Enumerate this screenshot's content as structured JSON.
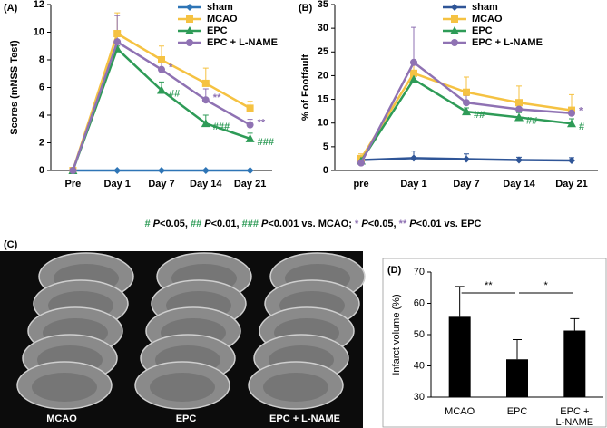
{
  "chart_data": [
    {
      "type": "line",
      "panel": "(A)",
      "y_label": "Scores (mNSS Test)",
      "categories": [
        "Pre",
        "Day 1",
        "Day 7",
        "Day 14",
        "Day 21"
      ],
      "ylim": [
        0,
        12
      ],
      "yticks": [
        0,
        2,
        4,
        6,
        8,
        10,
        12
      ],
      "series": [
        {
          "name": "sham",
          "color": "#2e75b6",
          "marker": "diamond",
          "values": [
            0,
            0,
            0,
            0,
            0
          ],
          "errors": [
            0,
            0,
            0,
            0,
            0
          ],
          "annotations": [
            null,
            null,
            null,
            null,
            null
          ]
        },
        {
          "name": "MCAO",
          "color": "#f5c242",
          "marker": "square",
          "values": [
            0,
            9.9,
            8.0,
            6.3,
            4.5
          ],
          "errors": [
            0,
            1.5,
            1.0,
            1.1,
            0.5
          ],
          "annotations": [
            null,
            null,
            null,
            null,
            null
          ]
        },
        {
          "name": "EPC",
          "color": "#2e9b57",
          "marker": "triangle",
          "values": [
            0,
            8.8,
            5.8,
            3.4,
            2.3
          ],
          "errors": [
            0,
            0.2,
            0.6,
            0.6,
            0.4
          ],
          "annotations": [
            null,
            null,
            "##",
            "###",
            "###"
          ]
        },
        {
          "name": "EPC + L-NAME",
          "color": "#8f72b3",
          "marker": "circle",
          "values": [
            0,
            9.3,
            7.3,
            5.1,
            3.3
          ],
          "errors": [
            0,
            1.9,
            0.7,
            0.8,
            0.4
          ],
          "annotations": [
            null,
            null,
            "*",
            "**",
            "**"
          ]
        }
      ]
    },
    {
      "type": "line",
      "panel": "(B)",
      "y_label": "% of Footfault",
      "categories": [
        "pre",
        "Day 1",
        "Day 7",
        "Day 14",
        "Day 21"
      ],
      "ylim": [
        0,
        35
      ],
      "yticks": [
        0,
        5,
        10,
        15,
        20,
        25,
        30,
        35
      ],
      "series": [
        {
          "name": "sham",
          "color": "#2f5597",
          "marker": "diamond",
          "values": [
            2.2,
            2.6,
            2.4,
            2.2,
            2.1
          ],
          "errors": [
            0.6,
            1.5,
            1.1,
            0.6,
            0.6
          ],
          "annotations": [
            null,
            null,
            null,
            null,
            null
          ]
        },
        {
          "name": "MCAO",
          "color": "#f5c242",
          "marker": "square",
          "values": [
            2.5,
            20.5,
            16.5,
            14.3,
            12.7
          ],
          "errors": [
            1.0,
            2.5,
            3.2,
            3.5,
            3.3
          ],
          "annotations": [
            null,
            null,
            null,
            null,
            null
          ]
        },
        {
          "name": "EPC",
          "color": "#2e9b57",
          "marker": "triangle",
          "values": [
            2.0,
            19.2,
            12.4,
            11.2,
            9.9
          ],
          "errors": [
            0.6,
            0.8,
            0.8,
            1.0,
            1.0
          ],
          "annotations": [
            null,
            null,
            "##",
            "##",
            "#"
          ]
        },
        {
          "name": "EPC + L-NAME",
          "color": "#8f72b3",
          "marker": "circle",
          "values": [
            1.6,
            22.8,
            14.3,
            12.9,
            12.1
          ],
          "errors": [
            0.5,
            7.4,
            1.5,
            1.2,
            1.0
          ],
          "annotations": [
            null,
            null,
            null,
            null,
            "*"
          ]
        }
      ]
    },
    {
      "type": "bar",
      "panel": "(D)",
      "y_label": "Infarct volume (%)",
      "categories": [
        "MCAO",
        "EPC",
        [
          "EPC +",
          "L-NAME"
        ]
      ],
      "values": [
        55.7,
        42.1,
        51.3
      ],
      "errors": [
        9.7,
        6.3,
        3.8
      ],
      "color": "#000000",
      "ylim": [
        30,
        70
      ],
      "yticks": [
        30,
        40,
        50,
        60,
        70
      ],
      "significance": [
        "**",
        "*"
      ]
    }
  ],
  "footnote": [
    {
      "text": "#",
      "color": "#2e9b57"
    },
    {
      "text": " P",
      "italic": true
    },
    {
      "text": "<0.05, "
    },
    {
      "text": "##",
      "color": "#2e9b57"
    },
    {
      "text": " P",
      "italic": true
    },
    {
      "text": "<0.01, "
    },
    {
      "text": "###",
      "color": "#2e9b57"
    },
    {
      "text": " P",
      "italic": true
    },
    {
      "text": "<0.001 vs. MCAO; "
    },
    {
      "text": "*",
      "color": "#8f72b3"
    },
    {
      "text": " P",
      "italic": true
    },
    {
      "text": "<0.05, "
    },
    {
      "text": "**",
      "color": "#8f72b3"
    },
    {
      "text": " P",
      "italic": true
    },
    {
      "text": "<0.01 vs. EPC"
    }
  ],
  "image_panel": {
    "panel": "(C)",
    "captions": [
      "MCAO",
      "EPC",
      "EPC + L-NAME"
    ]
  }
}
